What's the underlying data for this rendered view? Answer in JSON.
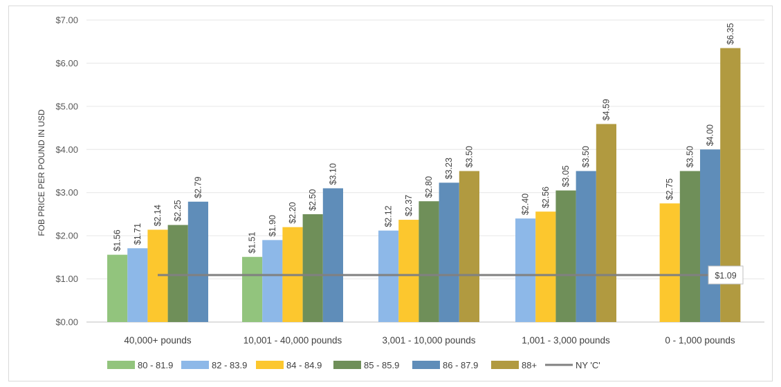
{
  "chart_data": {
    "type": "bar",
    "ylabel": "FOB PRICE PER POUND IN USD",
    "ylim": [
      0,
      7
    ],
    "yticks": [
      "$0.00",
      "$1.00",
      "$2.00",
      "$3.00",
      "$4.00",
      "$5.00",
      "$6.00",
      "$7.00"
    ],
    "categories": [
      "40,000+ pounds",
      "10,001 - 40,000 pounds",
      "3,001 - 10,000 pounds",
      "1,001 - 3,000 pounds",
      "0 - 1,000 pounds"
    ],
    "series": [
      {
        "name": "80 - 81.9",
        "color": "#92c47d",
        "values": [
          1.56,
          1.51,
          null,
          null,
          null
        ],
        "labels": [
          "$1.56",
          "$1.51",
          "",
          "",
          ""
        ]
      },
      {
        "name": "82 - 83.9",
        "color": "#8db8e8",
        "values": [
          1.71,
          1.9,
          2.12,
          2.4,
          null
        ],
        "labels": [
          "$1.71",
          "$1.90",
          "$2.12",
          "$2.40",
          ""
        ]
      },
      {
        "name": "84 - 84.9",
        "color": "#fcc72e",
        "values": [
          2.14,
          2.2,
          2.37,
          2.56,
          2.75
        ],
        "labels": [
          "$2.14",
          "$2.20",
          "$2.37",
          "$2.56",
          "$2.75"
        ]
      },
      {
        "name": "85 - 85.9",
        "color": "#6f8f59",
        "values": [
          2.25,
          2.5,
          2.8,
          3.05,
          3.5
        ],
        "labels": [
          "$2.25",
          "$2.50",
          "$2.80",
          "$3.05",
          "$3.50"
        ]
      },
      {
        "name": "86 - 87.9",
        "color": "#5f8db9",
        "values": [
          2.79,
          3.1,
          3.23,
          3.5,
          4.0
        ],
        "labels": [
          "$2.79",
          "$3.10",
          "$3.23",
          "$3.50",
          "$4.00"
        ]
      },
      {
        "name": "88+",
        "color": "#b19a40",
        "values": [
          null,
          null,
          3.5,
          4.59,
          6.35
        ],
        "labels": [
          "",
          "",
          "$3.50",
          "$4.59",
          "$6.35"
        ]
      }
    ],
    "line": {
      "name": "NY 'C'",
      "color": "#808080",
      "value": 1.09,
      "label": "$1.09"
    },
    "legend_position": "bottom",
    "grid": true
  }
}
